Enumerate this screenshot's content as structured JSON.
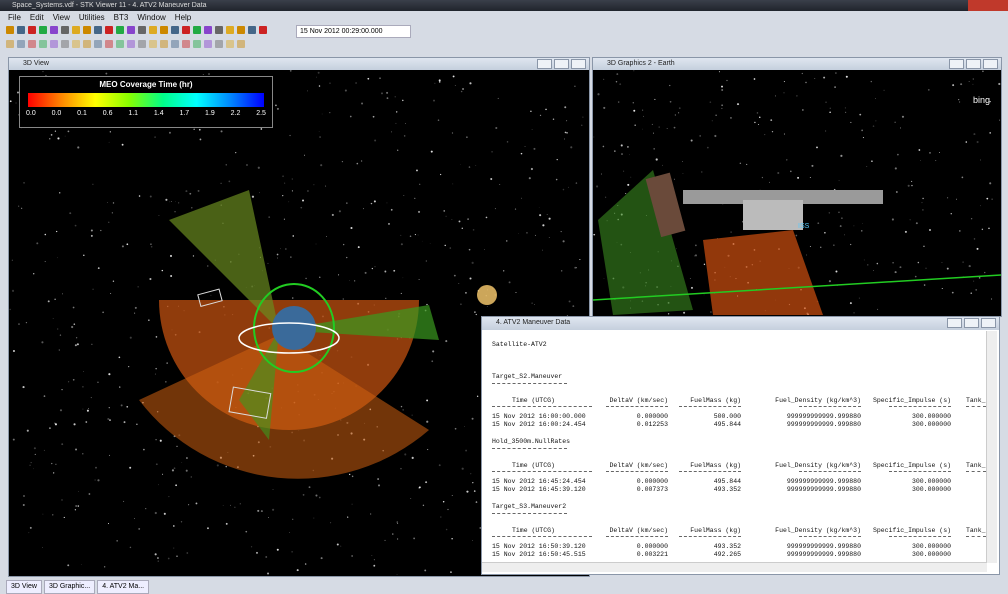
{
  "window": {
    "title": "Space_Systems.vdf - STK Viewer 11 - 4. ATV2 Maneuver Data"
  },
  "menu": [
    "File",
    "Edit",
    "View",
    "Utilities",
    "BT3",
    "Window",
    "Help"
  ],
  "toolbar": {
    "time": "15 Nov 2012 00:29:00.000"
  },
  "left_pane": {
    "title": "3D View",
    "legend": {
      "title": "MEO Coverage Time (hr)",
      "ticks": [
        "0.0",
        "0.0",
        "0.1",
        "0.6",
        "1.1",
        "1.4",
        "1.7",
        "1.9",
        "2.2",
        "2.5"
      ]
    }
  },
  "right_pane": {
    "title": "3D Graphics 2 - Earth",
    "logo": "bing",
    "object_label": "ISS"
  },
  "report": {
    "title": "4. ATV2 Maneuver Data",
    "object": "Satellite-ATV2",
    "columns": [
      "Time (UTCG)",
      "DeltaV (km/sec)",
      "FuelMass (kg)",
      "Fuel_Density (kg/km^3)",
      "Specific_Impulse (s)",
      "Tank_"
    ],
    "sections": [
      {
        "name": "Target_S2.Maneuver",
        "rows": [
          [
            "15 Nov 2012 16:00:00.000",
            "0.000000",
            "500.000",
            "999999999999.999880",
            "300.000000"
          ],
          [
            "15 Nov 2012 16:00:24.454",
            "0.012253",
            "495.844",
            "999999999999.999880",
            "300.000000"
          ]
        ]
      },
      {
        "name": "Hold_3500m.NullRates",
        "rows": [
          [
            "15 Nov 2012 16:45:24.454",
            "0.000000",
            "495.844",
            "999999999999.999880",
            "300.000000"
          ],
          [
            "15 Nov 2012 16:45:39.120",
            "0.007373",
            "493.352",
            "999999999999.999880",
            "300.000000"
          ]
        ]
      },
      {
        "name": "Target_S3.Maneuver2",
        "rows": [
          [
            "15 Nov 2012 16:50:39.120",
            "0.000000",
            "493.352",
            "999999999999.999880",
            "300.000000"
          ],
          [
            "15 Nov 2012 16:50:45.515",
            "0.003221",
            "492.265",
            "999999999999.999880",
            "300.000000"
          ]
        ]
      }
    ]
  },
  "taskbar": [
    "3D View",
    "3D Graphic...",
    "4. ATV2 Ma..."
  ]
}
